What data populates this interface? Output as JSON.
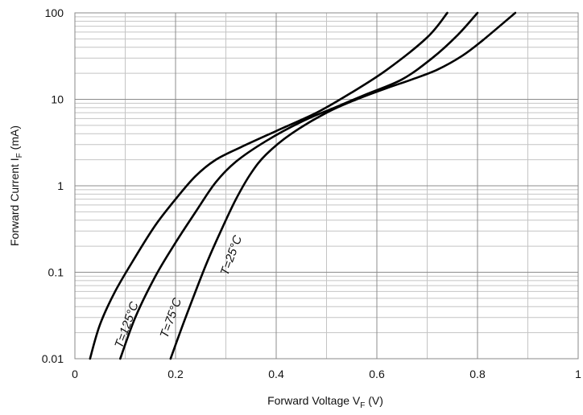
{
  "chart_data": {
    "type": "line",
    "title": "",
    "xlabel": {
      "main": "Forward Voltage V",
      "sub": "F",
      "tail": " (V)"
    },
    "ylabel": {
      "main": "Forward Current I",
      "sub": "F",
      "tail": "  (mA)"
    },
    "xlim": [
      0,
      1
    ],
    "ylim": [
      0.01,
      100
    ],
    "yscale": "log",
    "grid": true,
    "x_ticks": [
      {
        "value": 0,
        "label": "0"
      },
      {
        "value": 0.2,
        "label": "0.2"
      },
      {
        "value": 0.4,
        "label": "0.4"
      },
      {
        "value": 0.6,
        "label": "0.6"
      },
      {
        "value": 0.8,
        "label": "0.8"
      },
      {
        "value": 1,
        "label": "1"
      }
    ],
    "y_ticks": [
      {
        "value": 0.01,
        "label": "0.01"
      },
      {
        "value": 0.1,
        "label": "0.1"
      },
      {
        "value": 1,
        "label": "1"
      },
      {
        "value": 10,
        "label": "10"
      },
      {
        "value": 100,
        "label": "100"
      }
    ],
    "series": [
      {
        "name": "T=125°C",
        "x": [
          0.03,
          0.05,
          0.08,
          0.12,
          0.16,
          0.2,
          0.24,
          0.28,
          0.33,
          0.4,
          0.48,
          0.55,
          0.62,
          0.7,
          0.74
        ],
        "y": [
          0.01,
          0.025,
          0.06,
          0.15,
          0.35,
          0.7,
          1.3,
          2.0,
          2.8,
          4.3,
          7.0,
          12,
          22,
          52,
          100
        ]
      },
      {
        "name": "T=75°C",
        "x": [
          0.09,
          0.12,
          0.16,
          0.2,
          0.24,
          0.28,
          0.32,
          0.38,
          0.45,
          0.52,
          0.58,
          0.65,
          0.71,
          0.76,
          0.8
        ],
        "y": [
          0.01,
          0.03,
          0.09,
          0.22,
          0.5,
          1.1,
          1.9,
          3.3,
          5.5,
          8.2,
          11.5,
          17,
          30,
          55,
          100
        ]
      },
      {
        "name": "T=25°C",
        "x": [
          0.19,
          0.22,
          0.26,
          0.29,
          0.32,
          0.35,
          0.38,
          0.43,
          0.5,
          0.56,
          0.62,
          0.67,
          0.72,
          0.77,
          0.81,
          0.875
        ],
        "y": [
          0.01,
          0.03,
          0.12,
          0.3,
          0.7,
          1.4,
          2.3,
          4.0,
          7.0,
          10.0,
          13.5,
          17,
          22,
          32,
          48,
          100
        ]
      }
    ]
  }
}
